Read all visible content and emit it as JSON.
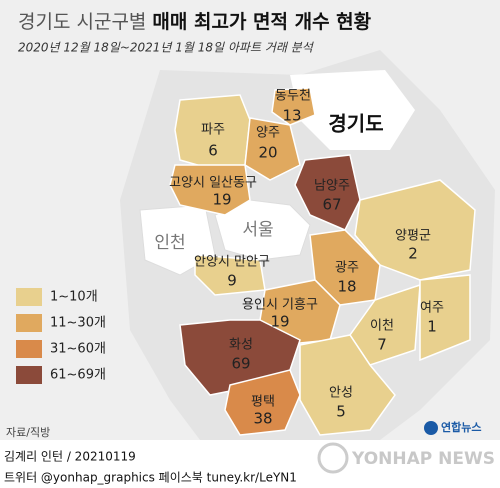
{
  "header": {
    "title_prefix": "경기도 시군구별",
    "title_main": "매매 최고가 면적 개수 현황",
    "subtitle": "2020년 12월 18일~2021년 1월 18일 아파트 거래 분석"
  },
  "map": {
    "labels": {
      "province": "경기도",
      "seoul": "서울",
      "incheon": "인천"
    },
    "regions": [
      {
        "name": "동두천",
        "value": 13,
        "color": "#e0a95f"
      },
      {
        "name": "파주",
        "value": 6,
        "color": "#e8d08e"
      },
      {
        "name": "양주",
        "value": 20,
        "color": "#e0a95f"
      },
      {
        "name": "고양시 일산동구",
        "value": 19,
        "color": "#e0a95f"
      },
      {
        "name": "남양주",
        "value": 67,
        "color": "#8b4a3a"
      },
      {
        "name": "양평군",
        "value": 2,
        "color": "#e8d08e"
      },
      {
        "name": "광주",
        "value": 18,
        "color": "#e0a95f"
      },
      {
        "name": "안양시 만안구",
        "value": 9,
        "color": "#e8d08e"
      },
      {
        "name": "용인시 기흥구",
        "value": 19,
        "color": "#e0a95f"
      },
      {
        "name": "이천",
        "value": 7,
        "color": "#e8d08e"
      },
      {
        "name": "여주",
        "value": 1,
        "color": "#e8d08e"
      },
      {
        "name": "화성",
        "value": 69,
        "color": "#8b4a3a"
      },
      {
        "name": "평택",
        "value": 38,
        "color": "#d98a4a"
      },
      {
        "name": "안성",
        "value": 5,
        "color": "#e8d08e"
      }
    ]
  },
  "legend": [
    {
      "label": "1~10개",
      "color": "#e8d08e"
    },
    {
      "label": "11~30개",
      "color": "#e0a95f"
    },
    {
      "label": "31~60개",
      "color": "#d98a4a"
    },
    {
      "label": "61~69개",
      "color": "#8b4a3a"
    }
  ],
  "footer": {
    "source": "자료/직방",
    "logo": "연합뉴스",
    "watermark": "YONHAP NEWS",
    "credit": "김계리 인턴 / 20210119",
    "social": "트위터 @yonhap_graphics  페이스북 tuney.kr/LeYN1"
  }
}
